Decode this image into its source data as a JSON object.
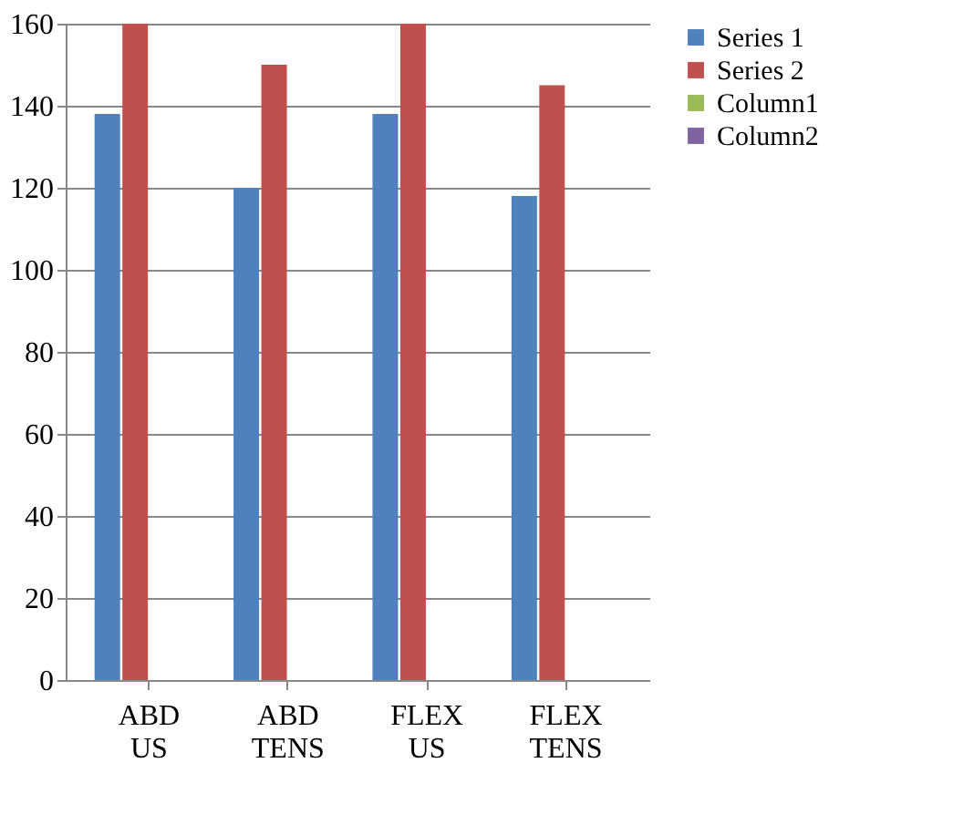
{
  "chart_data": {
    "type": "bar",
    "categories": [
      "ABD US",
      "ABD TENS",
      "FLEX US",
      "FLEX TENS"
    ],
    "series": [
      {
        "name": "Series 1",
        "color": "#4f81bd",
        "values": [
          138,
          120,
          138,
          118
        ]
      },
      {
        "name": "Series 2",
        "color": "#c0504d",
        "values": [
          160,
          150,
          160,
          145
        ]
      },
      {
        "name": "Column1",
        "color": "#9bbb59",
        "values": [
          null,
          null,
          null,
          null
        ]
      },
      {
        "name": "Column2",
        "color": "#8064a2",
        "values": [
          null,
          null,
          null,
          null
        ]
      }
    ],
    "ylim": [
      0,
      160
    ],
    "yticks": [
      0,
      20,
      40,
      60,
      80,
      100,
      120,
      140,
      160
    ],
    "grid": "y",
    "legend": "right"
  }
}
